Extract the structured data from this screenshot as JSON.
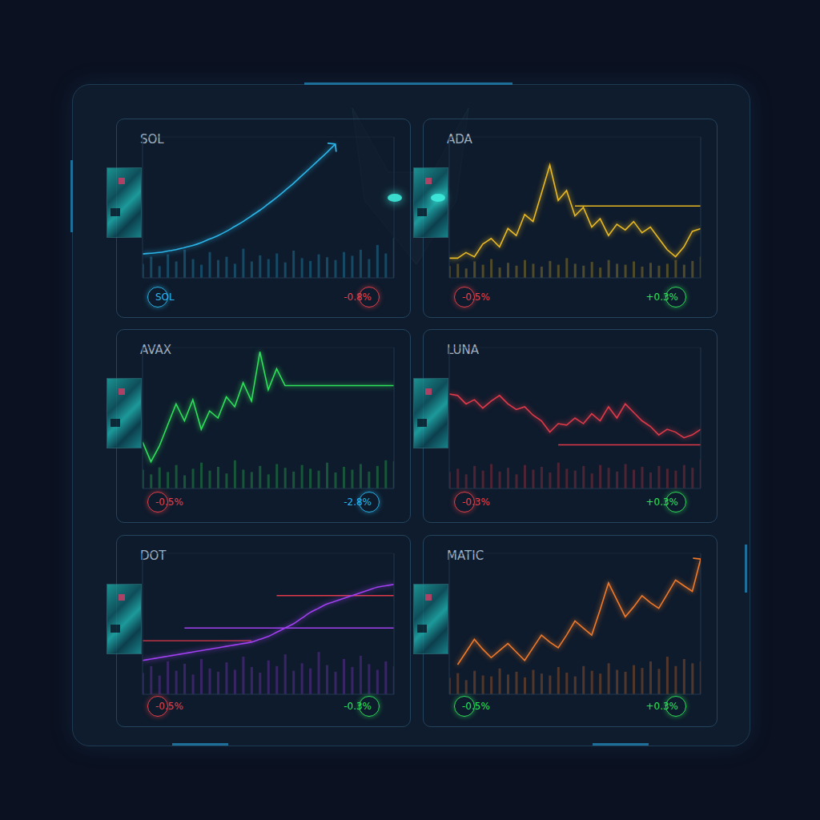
{
  "chart_data": [
    {
      "type": "line",
      "title": "SOL",
      "color": "#2bb5e8",
      "line_style": "smooth",
      "marker": "arrow",
      "grid": true,
      "tick_labels": false,
      "x": [
        0,
        1,
        2,
        3,
        4,
        5,
        6,
        7,
        8,
        9,
        10,
        11,
        12,
        13,
        14,
        15,
        16,
        17,
        18,
        19,
        20,
        21,
        22,
        23,
        24,
        25,
        26,
        27,
        28,
        29,
        30
      ],
      "xlim": [
        0,
        30
      ],
      "xticks": [
        0,
        5,
        10,
        15,
        20,
        25,
        30
      ],
      "ylim": [
        0,
        100
      ],
      "yticks": [
        0,
        25,
        50,
        75,
        100
      ],
      "y2lim": [
        0,
        300
      ],
      "y2ticks": [
        0,
        100,
        200,
        300
      ],
      "values": [
        17,
        17.5,
        18,
        19,
        20,
        21.5,
        23,
        25,
        27.5,
        30,
        33,
        36.5,
        40,
        44,
        48,
        52.5,
        57,
        62,
        67,
        72.5,
        78,
        83.5,
        89,
        95,
        null,
        null,
        null,
        null,
        null,
        null,
        null
      ],
      "volume": [
        30,
        45,
        25,
        50,
        35,
        60,
        40,
        28,
        55,
        38,
        45,
        30,
        62,
        35,
        48,
        40,
        52,
        33,
        58,
        42,
        36,
        50,
        44,
        38,
        55,
        47,
        60,
        40,
        70,
        52,
        85
      ],
      "reference_lines": [],
      "badges": [
        {
          "label": "SOL",
          "color": "#2bb5e8"
        },
        {
          "value": -0.8,
          "label": "-0.8%",
          "color": "#e8404a"
        }
      ]
    },
    {
      "type": "line",
      "title": "ADA",
      "color": "#e8b923",
      "line_style": "solid",
      "marker": "none",
      "grid": true,
      "tick_labels": false,
      "x": [
        0,
        1,
        2,
        3,
        4,
        5,
        6,
        7,
        8,
        9,
        10,
        11,
        12,
        13,
        14,
        15,
        16,
        17,
        18,
        19,
        20,
        21,
        22,
        23,
        24,
        25,
        26,
        27,
        28,
        29,
        30
      ],
      "xlim": [
        0,
        30
      ],
      "xticks": [
        0,
        5,
        10,
        15,
        20,
        25,
        30
      ],
      "ylim": [
        0,
        100
      ],
      "yticks": [
        0,
        25,
        50,
        75,
        100
      ],
      "y2lim": [
        0,
        300
      ],
      "y2ticks": [
        0,
        100,
        200,
        300
      ],
      "values": [
        14,
        14,
        18,
        15,
        24,
        28,
        22,
        35,
        30,
        45,
        40,
        60,
        80,
        55,
        62,
        44,
        50,
        36,
        42,
        30,
        38,
        34,
        40,
        32,
        36,
        28,
        20,
        15,
        22,
        33,
        35
      ],
      "volume": [
        25,
        30,
        20,
        35,
        28,
        40,
        22,
        32,
        26,
        38,
        30,
        24,
        36,
        28,
        42,
        30,
        26,
        34,
        22,
        38,
        30,
        28,
        35,
        24,
        32,
        26,
        30,
        38,
        28,
        36,
        45
      ],
      "reference_lines": [
        {
          "value": 51,
          "from": 15,
          "to": 30,
          "color": "#e8b923"
        }
      ],
      "badges": [
        {
          "value": -0.5,
          "label": "-0.5%",
          "color": "#e8404a"
        },
        {
          "value": 0.3,
          "label": "+0.3%",
          "color": "#2ee05a"
        }
      ]
    },
    {
      "type": "line",
      "title": "AVAX",
      "color": "#2ee05a",
      "line_style": "solid",
      "marker": "none",
      "grid": true,
      "tick_labels": false,
      "x": [
        0,
        1,
        2,
        3,
        4,
        5,
        6,
        7,
        8,
        9,
        10,
        11,
        12,
        13,
        14,
        15,
        16,
        17,
        18,
        19,
        20,
        21,
        22,
        23,
        24,
        25,
        26,
        27,
        28,
        29,
        30
      ],
      "xlim": [
        0,
        30
      ],
      "xticks": [
        0,
        5,
        10,
        15,
        20,
        25,
        30
      ],
      "ylim": [
        0,
        100
      ],
      "yticks": [
        0,
        25,
        50,
        75,
        100
      ],
      "y2lim": [
        0,
        300
      ],
      "y2ticks": [
        0,
        100,
        200,
        300
      ],
      "values": [
        33,
        19,
        30,
        45,
        60,
        48,
        63,
        42,
        55,
        50,
        65,
        58,
        75,
        62,
        97,
        70,
        85,
        73,
        73,
        73,
        73,
        73,
        73,
        73,
        73,
        73,
        73,
        73,
        73,
        73,
        73
      ],
      "volume": [
        40,
        30,
        45,
        35,
        50,
        28,
        42,
        55,
        38,
        46,
        32,
        60,
        40,
        35,
        48,
        30,
        52,
        44,
        36,
        50,
        42,
        38,
        55,
        34,
        46,
        40,
        52,
        36,
        48,
        60,
        58
      ],
      "reference_lines": [],
      "badges": [
        {
          "value": -0.5,
          "label": "-0.5%",
          "color": "#e8404a"
        },
        {
          "value": -2.8,
          "label": "-2.8%",
          "color": "#2bb5e8"
        }
      ]
    },
    {
      "type": "line",
      "title": "LUNA",
      "color": "#e03a4a",
      "line_style": "solid",
      "marker": "none",
      "grid": true,
      "tick_labels": false,
      "x": [
        0,
        1,
        2,
        3,
        4,
        5,
        6,
        7,
        8,
        9,
        10,
        11,
        12,
        13,
        14,
        15,
        16,
        17,
        18,
        19,
        20,
        21,
        22,
        23,
        24,
        25,
        26,
        27,
        28,
        29,
        30
      ],
      "xlim": [
        0,
        30
      ],
      "xticks": [
        0,
        5,
        10,
        15,
        20,
        25,
        30
      ],
      "ylim": [
        0,
        100
      ],
      "yticks": [
        0,
        25,
        50,
        75,
        100
      ],
      "y2lim": [
        0,
        300
      ],
      "y2ticks": [
        0,
        100,
        200,
        300
      ],
      "values": [
        67,
        66,
        60,
        63,
        57,
        62,
        66,
        60,
        56,
        58,
        52,
        48,
        40,
        46,
        45,
        50,
        46,
        53,
        48,
        58,
        50,
        60,
        54,
        48,
        44,
        38,
        42,
        40,
        36,
        38,
        42
      ],
      "volume": [
        35,
        42,
        30,
        48,
        38,
        52,
        36,
        44,
        30,
        50,
        40,
        46,
        34,
        55,
        42,
        38,
        48,
        32,
        50,
        44,
        36,
        52,
        40,
        46,
        34,
        48,
        42,
        38,
        50,
        44,
        62
      ],
      "reference_lines": [
        {
          "value": 31,
          "from": 13,
          "to": 30,
          "color": "#e03a4a"
        }
      ],
      "badges": [
        {
          "value": -0.3,
          "label": "-0.3%",
          "color": "#e8404a"
        },
        {
          "value": 0.3,
          "label": "+0.3%",
          "color": "#2ee05a"
        }
      ]
    },
    {
      "type": "line",
      "title": "DOT",
      "color": "#a040f0",
      "line_style": "smooth",
      "marker": "none",
      "grid": true,
      "tick_labels": false,
      "x": [
        0,
        1,
        2,
        3,
        4,
        5,
        6,
        7,
        8,
        9,
        10,
        11,
        12,
        13,
        14,
        15,
        16,
        17,
        18,
        19,
        20,
        21,
        22,
        23,
        24,
        25,
        26,
        27,
        28,
        29,
        30
      ],
      "xlim": [
        0,
        30
      ],
      "xticks": [
        0,
        5,
        10,
        15,
        20,
        25,
        30
      ],
      "ylim": [
        0,
        100
      ],
      "yticks": [
        0,
        25,
        50,
        75,
        100
      ],
      "y2lim": [
        0,
        300
      ],
      "y2ticks": [
        0,
        100,
        200,
        300
      ],
      "values": [
        24,
        25,
        26,
        27,
        28,
        29,
        30,
        31,
        32,
        33,
        34,
        35,
        36,
        37,
        39,
        41,
        44,
        47,
        50,
        54,
        58,
        61,
        64,
        66,
        68,
        70,
        72,
        74,
        76,
        77,
        78
      ],
      "volume": [
        45,
        60,
        40,
        70,
        50,
        65,
        42,
        75,
        55,
        48,
        68,
        52,
        80,
        58,
        46,
        72,
        60,
        85,
        50,
        66,
        55,
        90,
        62,
        48,
        75,
        58,
        82,
        64,
        52,
        70,
        60
      ],
      "reference_lines": [
        {
          "value": 38,
          "from": 0,
          "to": 13,
          "color": "#e03a4a"
        },
        {
          "value": 47,
          "from": 5,
          "to": 30,
          "color": "#a040f0"
        },
        {
          "value": 70,
          "from": 16,
          "to": 30,
          "color": "#e03a4a"
        }
      ],
      "badges": [
        {
          "value": -0.5,
          "label": "-0.5%",
          "color": "#e8404a"
        },
        {
          "value": -0.3,
          "label": "-0.3%",
          "color": "#2ee05a"
        }
      ]
    },
    {
      "type": "line",
      "title": "MATIC",
      "color": "#f07a2a",
      "line_style": "solid",
      "marker": "arrow",
      "grid": true,
      "tick_labels": false,
      "x": [
        0,
        1,
        2,
        3,
        4,
        5,
        6,
        7,
        8,
        9,
        10,
        11,
        12,
        13,
        14,
        15,
        16,
        17,
        18,
        19,
        20,
        21,
        22,
        23,
        24,
        25,
        26,
        27,
        28,
        29,
        30
      ],
      "xlim": [
        0,
        30
      ],
      "xticks": [
        0,
        5,
        10,
        15,
        20,
        25,
        30
      ],
      "ylim": [
        0,
        100
      ],
      "yticks": [
        0,
        25,
        50,
        75,
        100
      ],
      "y2lim": [
        0,
        300
      ],
      "y2ticks": [
        0,
        100,
        200,
        300
      ],
      "values": [
        null,
        21,
        30,
        39,
        32,
        26,
        31,
        36,
        30,
        24,
        33,
        42,
        37,
        33,
        42,
        52,
        47,
        42,
        60,
        79,
        67,
        55,
        62,
        70,
        65,
        61,
        71,
        81,
        77,
        73,
        96
      ],
      "volume": [
        35,
        45,
        30,
        50,
        40,
        38,
        55,
        42,
        48,
        36,
        52,
        44,
        40,
        58,
        46,
        38,
        60,
        50,
        44,
        66,
        52,
        48,
        62,
        56,
        70,
        54,
        80,
        60,
        75,
        66,
        70
      ],
      "reference_lines": [],
      "badges": [
        {
          "value": -0.5,
          "label": "-0.5%",
          "color": "#2ee05a"
        },
        {
          "value": 0.3,
          "label": "+0.3%",
          "color": "#2ee05a"
        }
      ]
    }
  ]
}
